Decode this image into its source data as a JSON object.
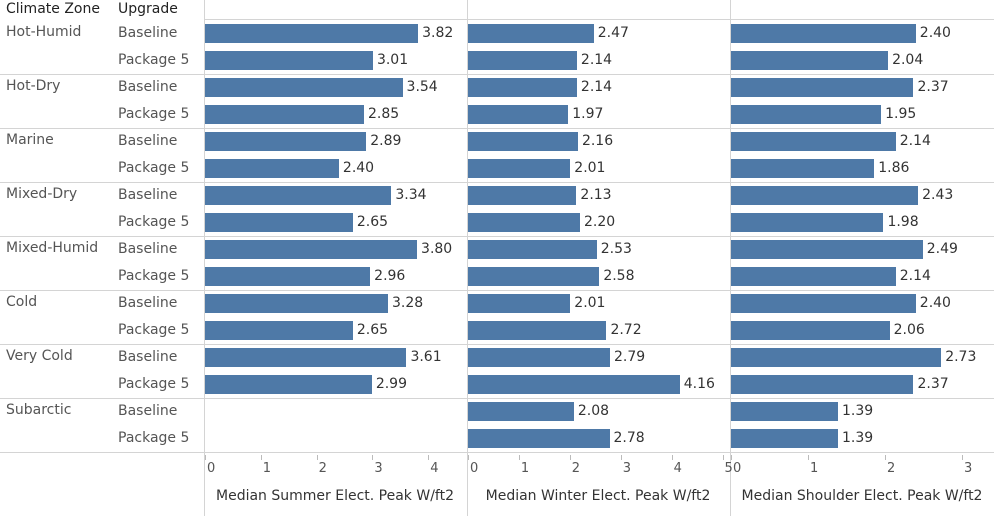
{
  "headers": {
    "climate_zone": "Climate Zone",
    "upgrade": "Upgrade"
  },
  "chart_data": {
    "type": "bar",
    "orientation": "horizontal",
    "color": "#4e79a7",
    "grid": true,
    "climate_zones": [
      "Hot-Humid",
      "Hot-Dry",
      "Marine",
      "Mixed-Dry",
      "Mixed-Humid",
      "Cold",
      "Very Cold",
      "Subarctic"
    ],
    "upgrades": [
      "Baseline",
      "Package 5"
    ],
    "panels": [
      {
        "xlabel": "Median Summer Elect. Peak W/ft2",
        "xlim": [
          0,
          4.5
        ],
        "ticks": [
          0,
          1,
          2,
          3,
          4
        ],
        "tick_labels": [
          "0",
          "1",
          "2",
          "3",
          "4"
        ],
        "values": [
          3.82,
          3.01,
          3.54,
          2.85,
          2.89,
          2.4,
          3.34,
          2.65,
          3.8,
          2.96,
          3.28,
          2.65,
          3.61,
          2.99,
          null,
          null
        ],
        "labels": [
          "3.82",
          "3.01",
          "3.54",
          "2.85",
          "2.89",
          "2.40",
          "3.34",
          "2.65",
          "3.80",
          "2.96",
          "3.28",
          "2.65",
          "3.61",
          "2.99",
          "",
          ""
        ]
      },
      {
        "xlabel": "Median Winter Elect. Peak W/ft2",
        "xlim": [
          0,
          5
        ],
        "ticks": [
          0,
          1,
          2,
          3,
          4,
          5
        ],
        "tick_labels": [
          "0",
          "1",
          "2",
          "3",
          "4",
          "5"
        ],
        "values": [
          2.47,
          2.14,
          2.14,
          1.97,
          2.16,
          2.01,
          2.13,
          2.2,
          2.53,
          2.58,
          2.01,
          2.72,
          2.79,
          4.16,
          2.08,
          2.78
        ],
        "labels": [
          "2.47",
          "2.14",
          "2.14",
          "1.97",
          "2.16",
          "2.01",
          "2.13",
          "2.20",
          "2.53",
          "2.58",
          "2.01",
          "2.72",
          "2.79",
          "4.16",
          "2.08",
          "2.78"
        ]
      },
      {
        "xlabel": "Median Shoulder Elect. Peak W/ft2",
        "xlim": [
          0,
          3.3
        ],
        "ticks": [
          0,
          1,
          2,
          3
        ],
        "tick_labels": [
          "0",
          "1",
          "2",
          "3"
        ],
        "values": [
          2.4,
          2.04,
          2.37,
          1.95,
          2.14,
          1.86,
          2.43,
          1.98,
          2.49,
          2.14,
          2.4,
          2.06,
          2.73,
          2.37,
          1.39,
          1.39
        ],
        "labels": [
          "2.40",
          "2.04",
          "2.37",
          "1.95",
          "2.14",
          "1.86",
          "2.43",
          "1.98",
          "2.49",
          "2.14",
          "2.40",
          "2.06",
          "2.73",
          "2.37",
          "1.39",
          "1.39"
        ]
      }
    ]
  }
}
